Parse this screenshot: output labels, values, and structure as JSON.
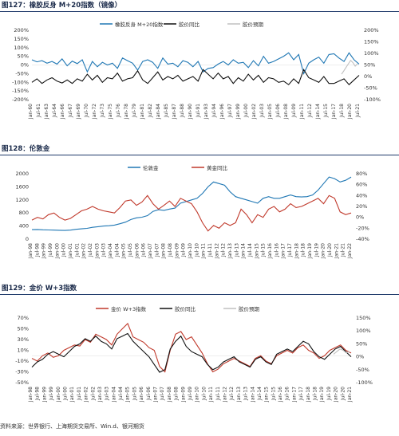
{
  "colors": {
    "blue": "#1f77b4",
    "black": "#111111",
    "gray": "#c0c0c0",
    "red": "#c0392b"
  },
  "source": "资料来源：世界银行、上海期货交易所、Win.d、银河期货",
  "charts": [
    {
      "title": "图127：橡胶反身  M+20指数（镜像）",
      "type": "line",
      "legend": [
        "橡胶反身 M+20指数",
        "胶价同比",
        "胶价预期"
      ],
      "left_ticks": [
        "200%",
        "150%",
        "100%",
        "50%",
        "0%",
        "-50%",
        "-100%",
        "-150%",
        "-200%"
      ],
      "right_ticks": [
        "200%",
        "150%",
        "100%",
        "50%",
        "0%",
        "-50%",
        "-100%"
      ],
      "x_labels": [
        "Jan-60",
        "Jul-61",
        "Jan-63",
        "Jul-64",
        "Jan-66",
        "Jul-67",
        "Jan-69",
        "Jul-70",
        "Jan-72",
        "Jul-73",
        "Jan-75",
        "Jul-76",
        "Jan-78",
        "Jul-79",
        "Jan-81",
        "Jul-82",
        "Jan-84",
        "Jul-85",
        "Jan-87",
        "Jul-88",
        "Jan-90",
        "Jul-91",
        "Jan-93",
        "Jul-94",
        "Jan-96",
        "Jul-97",
        "Jan-99",
        "Jul-00",
        "Jan-02",
        "Jul-03",
        "Jan-05",
        "Jul-06",
        "Jan-08",
        "Jul-09",
        "Jan-11",
        "Jul-12",
        "Jan-14",
        "Jul-15",
        "Jan-17",
        "Jul-18",
        "Jan-20",
        "Jul-21"
      ]
    },
    {
      "title": "图128：伦敦金",
      "type": "line",
      "legend": [
        "伦敦金",
        "黄金同比"
      ],
      "left_ticks": [
        "2000",
        "1600",
        "1200",
        "800",
        "400",
        "0"
      ],
      "right_ticks": [
        "80%",
        "60%",
        "40%",
        "20%",
        "0%",
        "-20%",
        "-40%"
      ],
      "x_labels": [
        "Jan-98",
        "Jul-98",
        "Jan-99",
        "Jul-99",
        "Jan-00",
        "Jul-00",
        "Jan-01",
        "Jul-01",
        "Jan-02",
        "Jul-02",
        "Jan-03",
        "Jul-03",
        "Jan-04",
        "Jul-04",
        "Jan-05",
        "Jul-05",
        "Jan-06",
        "Jul-06",
        "Jan-07",
        "Jul-07",
        "Jan-08",
        "Jul-08",
        "Jan-09",
        "Jul-09",
        "Jan-10",
        "Jul-10",
        "Jan-11",
        "Jul-11",
        "Jan-12",
        "Jul-12",
        "Jan-13",
        "Jul-13",
        "Jan-14",
        "Jul-14",
        "Jan-15",
        "Jul-15",
        "Jan-16",
        "Jul-16",
        "Jan-17",
        "Jul-17",
        "Jan-18",
        "Jul-18",
        "Jan-19",
        "Jul-19",
        "Jan-20",
        "Jul-20",
        "Jan-21",
        "Jul-21",
        "Jan-22"
      ]
    },
    {
      "title": "图129：金价  W+3指数",
      "type": "line",
      "legend": [
        "金价 W+3指数",
        "胶价同比",
        "胶价预期"
      ],
      "left_ticks": [
        "70%",
        "50%",
        "30%",
        "10%",
        "-10%",
        "-30%",
        "-50%"
      ],
      "right_ticks": [
        "150%",
        "100%",
        "50%",
        "0%",
        "-50%",
        "-100%"
      ],
      "x_labels": [
        "Jan-98",
        "Jul-98",
        "Jan-99",
        "Jul-99",
        "Jan-00",
        "Jul-00",
        "Jan-01",
        "Jul-01",
        "Jan-02",
        "Jul-02",
        "Jan-03",
        "Jul-03",
        "Jan-04",
        "Jul-04",
        "Jan-05",
        "Jul-05",
        "Jan-06",
        "Jul-06",
        "Jan-07",
        "Jul-07",
        "Jan-08",
        "Jul-08",
        "Jan-09",
        "Jul-09",
        "Jan-10",
        "Jul-10",
        "Jan-11",
        "Jul-11",
        "Jan-12",
        "Jul-12",
        "Jan-13",
        "Jul-13",
        "Jan-14",
        "Jul-14",
        "Jan-15",
        "Jul-15",
        "Jan-16",
        "Jul-16",
        "Jan-17",
        "Jul-17",
        "Jan-18",
        "Jul-18",
        "Jan-19",
        "Jul-19",
        "Jan-20",
        "Jul-20",
        "Jan-21"
      ]
    }
  ],
  "chart_data": [
    {
      "type": "line",
      "title": "图127：橡胶反身  M+20指数（镜像）",
      "y_left": [
        -200,
        200
      ],
      "y_right": [
        -100,
        200
      ],
      "series": [
        {
          "name": "橡胶反身 M+20指数",
          "axis": "left",
          "values": [
            30,
            18,
            25,
            10,
            20,
            5,
            35,
            -5,
            22,
            8,
            30,
            -40,
            20,
            -10,
            15,
            0,
            10,
            -20,
            40,
            25,
            10,
            -30,
            20,
            30,
            15,
            -20,
            40,
            5,
            10,
            -10,
            25,
            15,
            -10,
            20,
            -40,
            -20,
            -15,
            5,
            20,
            0,
            30,
            10,
            15,
            -15,
            25,
            -5,
            50,
            10,
            20,
            35,
            50,
            70,
            30,
            60,
            -50,
            10,
            30,
            45,
            10,
            60,
            65,
            40,
            20,
            70,
            30,
            5
          ]
        },
        {
          "name": "胶价同比",
          "axis": "right",
          "values": [
            -25,
            -10,
            -30,
            -15,
            -5,
            -20,
            -28,
            -15,
            -30,
            -10,
            -20,
            10,
            -15,
            5,
            -25,
            -5,
            -10,
            15,
            -20,
            -10,
            -5,
            25,
            -15,
            -30,
            -5,
            20,
            -15,
            0,
            -10,
            5,
            -20,
            -10,
            0,
            -20,
            30,
            10,
            -10,
            15,
            -10,
            0,
            -30,
            -5,
            -20,
            10,
            -15,
            5,
            -25,
            -5,
            -10,
            -25,
            -20,
            -35,
            -10,
            -30,
            30,
            -5,
            -15,
            -25,
            0,
            -30,
            -30,
            -20,
            -10,
            -35,
            -15,
            5
          ]
        },
        {
          "name": "胶价预期",
          "axis": "right",
          "values": [
            10,
            25,
            40,
            55,
            70,
            60,
            45,
            55
          ]
        }
      ]
    },
    {
      "type": "line",
      "title": "图128：伦敦金",
      "y_left": [
        0,
        2000
      ],
      "y_right": [
        -40,
        80
      ],
      "series": [
        {
          "name": "伦敦金",
          "axis": "left",
          "values": [
            290,
            295,
            285,
            280,
            275,
            270,
            265,
            275,
            300,
            315,
            330,
            360,
            380,
            400,
            410,
            430,
            470,
            520,
            600,
            650,
            670,
            720,
            850,
            900,
            880,
            920,
            950,
            1100,
            1150,
            1200,
            1250,
            1400,
            1600,
            1750,
            1700,
            1650,
            1450,
            1300,
            1250,
            1200,
            1150,
            1100,
            1250,
            1300,
            1250,
            1250,
            1300,
            1350,
            1300,
            1290,
            1300,
            1350,
            1500,
            1700,
            1900,
            1850,
            1750,
            1800,
            1900
          ]
        },
        {
          "name": "黄金同比",
          "axis": "right",
          "values": [
            -5,
            0,
            -3,
            5,
            8,
            0,
            -5,
            -2,
            5,
            12,
            15,
            20,
            15,
            12,
            10,
            8,
            18,
            30,
            32,
            22,
            28,
            40,
            25,
            15,
            22,
            30,
            20,
            35,
            30,
            25,
            10,
            -10,
            -25,
            -15,
            -20,
            -10,
            -15,
            -10,
            15,
            5,
            -10,
            5,
            0,
            15,
            20,
            10,
            15,
            25,
            18,
            20,
            25,
            30,
            35,
            25,
            40,
            35,
            10,
            5,
            8
          ]
        }
      ]
    },
    {
      "type": "line",
      "title": "图129：金价  W+3指数",
      "y_left": [
        -50,
        70
      ],
      "y_right": [
        -100,
        150
      ],
      "series": [
        {
          "name": "金价 W+3指数",
          "axis": "left",
          "values": [
            -5,
            -10,
            0,
            5,
            -3,
            0,
            10,
            15,
            20,
            18,
            30,
            25,
            40,
            35,
            30,
            20,
            40,
            50,
            60,
            35,
            30,
            25,
            15,
            10,
            -20,
            -30,
            10,
            40,
            45,
            30,
            35,
            20,
            5,
            -15,
            -30,
            -25,
            -15,
            -10,
            -5,
            -10,
            -15,
            -20,
            -5,
            0,
            -10,
            -15,
            0,
            5,
            10,
            5,
            15,
            20,
            10,
            5,
            -5,
            0,
            10,
            15,
            20,
            10,
            5
          ]
        },
        {
          "name": "胶价同比",
          "axis": "right",
          "values": [
            -40,
            -20,
            -10,
            10,
            20,
            10,
            0,
            20,
            40,
            50,
            70,
            60,
            80,
            60,
            50,
            30,
            70,
            80,
            90,
            60,
            40,
            20,
            0,
            -30,
            -60,
            -50,
            30,
            60,
            80,
            40,
            20,
            10,
            0,
            -30,
            -50,
            -40,
            -20,
            -10,
            0,
            -20,
            -30,
            -40,
            -10,
            0,
            -20,
            -30,
            10,
            20,
            30,
            20,
            40,
            60,
            50,
            20,
            0,
            -10,
            10,
            30,
            40,
            20,
            0
          ]
        },
        {
          "name": "胶价预期",
          "axis": "right",
          "values": [
            10,
            20,
            30,
            25,
            15,
            20
          ]
        }
      ]
    }
  ]
}
